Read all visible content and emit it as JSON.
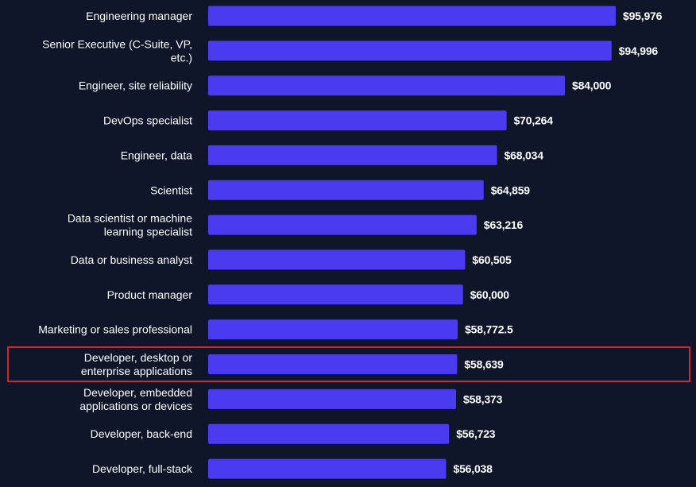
{
  "colors": {
    "background": "#0f1629",
    "bar": "#4a3af0",
    "text": "#ffffff",
    "highlight": "#d0262f"
  },
  "chart_data": {
    "type": "bar",
    "orientation": "horizontal",
    "categories": [
      [
        "Engineering manager"
      ],
      [
        "Senior Executive (C-Suite, VP,",
        "etc.)"
      ],
      [
        "Engineer, site reliability"
      ],
      [
        "DevOps specialist"
      ],
      [
        "Engineer, data"
      ],
      [
        "Scientist"
      ],
      [
        "Data scientist or machine",
        "learning specialist"
      ],
      [
        "Data or business analyst"
      ],
      [
        "Product manager"
      ],
      [
        "Marketing or sales professional"
      ],
      [
        "Developer, desktop or",
        "enterprise applications"
      ],
      [
        "Developer, embedded",
        "applications or devices"
      ],
      [
        "Developer, back-end"
      ],
      [
        "Developer, full-stack"
      ]
    ],
    "values": [
      95976,
      94996,
      84000,
      70264,
      68034,
      64859,
      63216,
      60505,
      60000,
      58772.5,
      58639,
      58373,
      56723,
      56038
    ],
    "value_labels": [
      "$95,976",
      "$94,996",
      "$84,000",
      "$70,264",
      "$68,034",
      "$64,859",
      "$63,216",
      "$60,505",
      "$60,000",
      "$58,772.5",
      "$58,639",
      "$58,373",
      "$56,723",
      "$56,038"
    ],
    "highlighted_index": 10,
    "grid": false,
    "legend": "none"
  }
}
